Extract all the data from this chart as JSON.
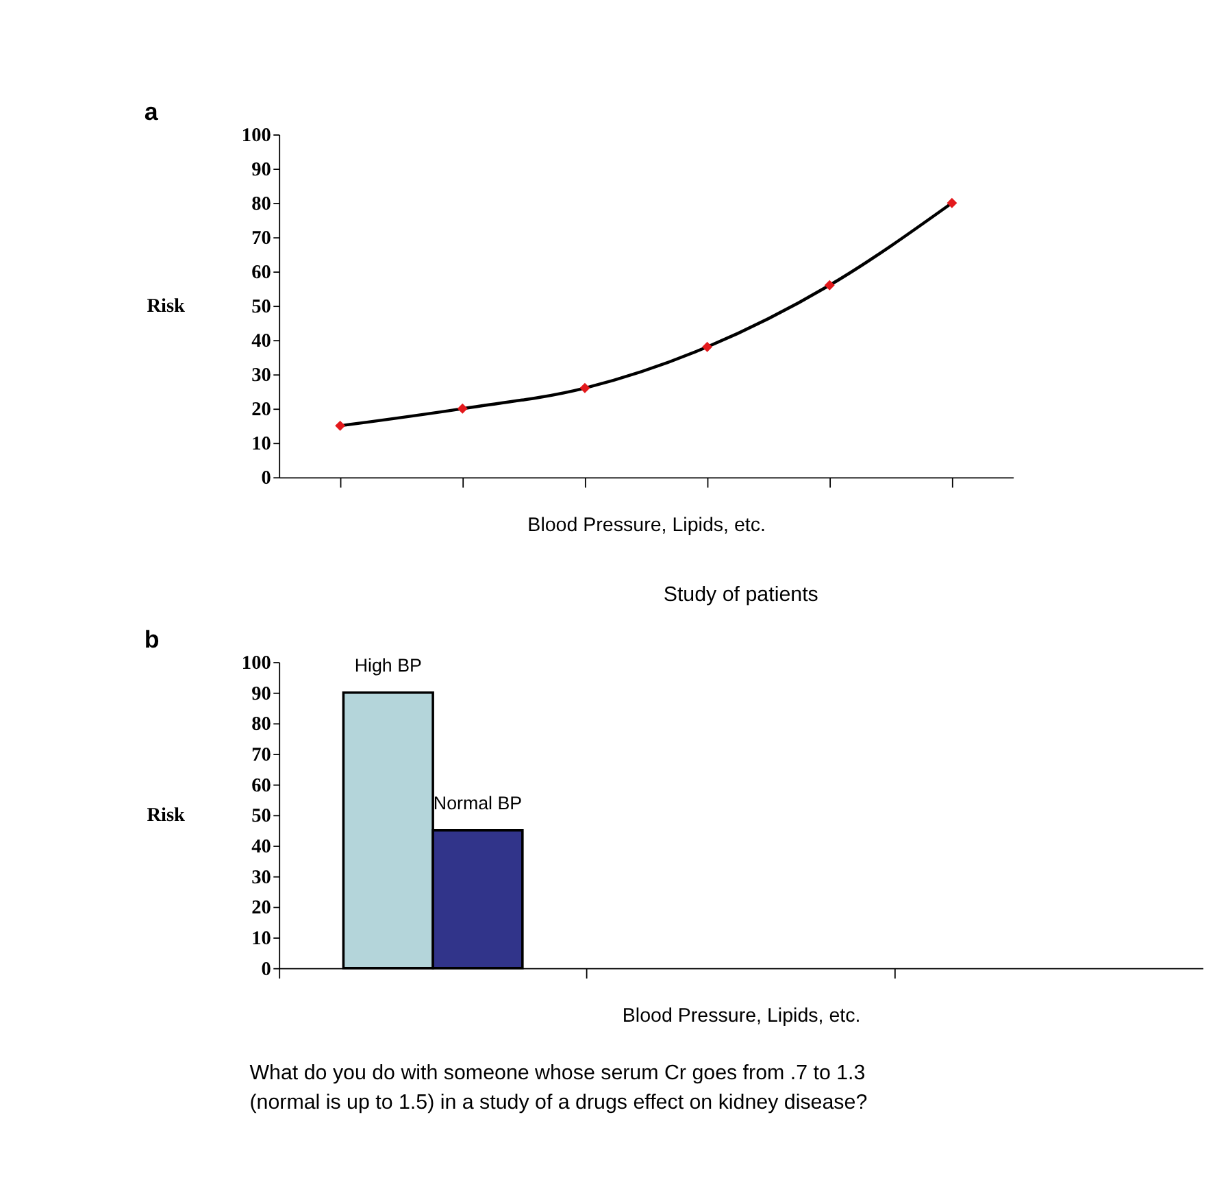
{
  "chart_data": [
    {
      "type": "line",
      "xlabel": "Blood Pressure, Lipids, etc.",
      "ylabel": "Risk",
      "annotations": [
        "a"
      ],
      "categories": [
        null,
        null,
        null,
        null,
        null,
        null
      ],
      "series": [
        {
          "color": "#000000",
          "values": [
            15,
            20,
            26,
            38,
            56,
            80
          ]
        }
      ],
      "marker": "diamond",
      "line_style": "solid",
      "ylim": [
        0,
        100
      ],
      "yticks": [
        0,
        10,
        20,
        30,
        40,
        50,
        60,
        70,
        80,
        90,
        100
      ],
      "grid": false,
      "legend": false,
      "tick_labels": "y"
    },
    {
      "type": "bar",
      "title": "Study of patients",
      "xlabel": "Blood Pressure, Lipids, etc.",
      "ylabel": "Risk",
      "annotations": [
        "b",
        "What do you do with someone whose serum Cr goes from .7 to 1.3\n(normal is up to 1.5) in a study of a drugs effect on kidney disease?"
      ],
      "categories": [
        null,
        null,
        null
      ],
      "series": [
        {
          "name": "High BP",
          "color": "#b4d5da",
          "values": [
            90,
            null,
            null
          ]
        },
        {
          "name": "Normal BP",
          "color": "#31348a",
          "values": [
            45,
            null,
            null
          ]
        }
      ],
      "ylim": [
        0,
        100
      ],
      "yticks": [
        0,
        10,
        20,
        30,
        40,
        50,
        60,
        70,
        80,
        90,
        100
      ],
      "grid": false,
      "legend": false,
      "tick_labels": "y"
    }
  ]
}
